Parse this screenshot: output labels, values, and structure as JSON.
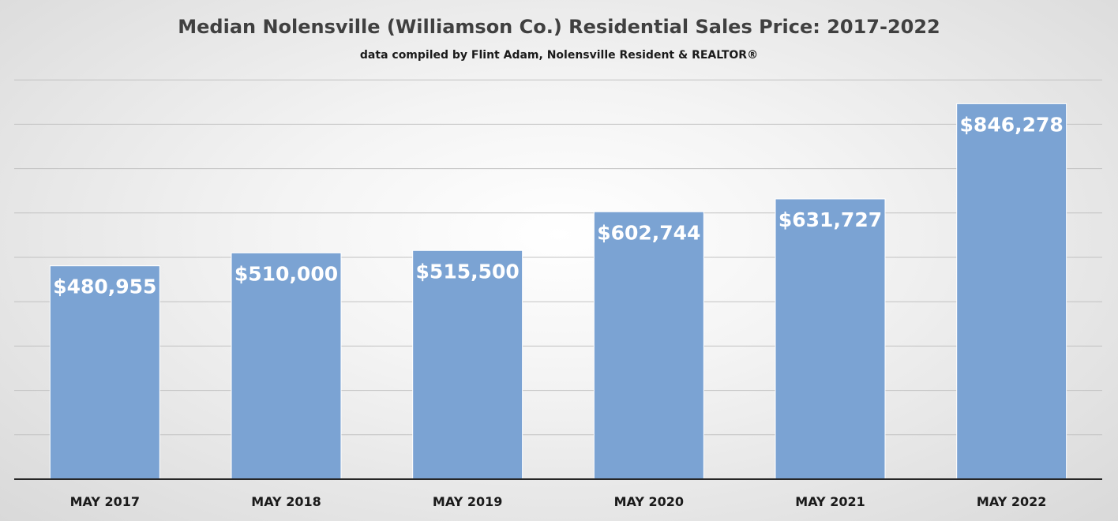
{
  "chart_data": {
    "type": "bar",
    "title": "Median Nolensville (Williamson Co.) Residential Sales Price: 2017-2022",
    "subtitle": "data compiled by Flint Adam, Nolensville Resident & REALTOR®",
    "categories": [
      "MAY 2017",
      "MAY 2018",
      "MAY 2019",
      "MAY 2020",
      "MAY 2021",
      "MAY 2022"
    ],
    "values": [
      480955,
      510000,
      515500,
      602744,
      631727,
      846278
    ],
    "data_labels": [
      "$480,955",
      "$510,000",
      "$515,500",
      "$602,744",
      "$631,727",
      "$846,278"
    ],
    "ylim": [
      0,
      1000000
    ],
    "grid": true,
    "legend": "none",
    "colors": {
      "bar": "#7ba3d3",
      "data_label": "#ffffff",
      "title": "#404040",
      "gridline": "#c2c2c2"
    }
  }
}
